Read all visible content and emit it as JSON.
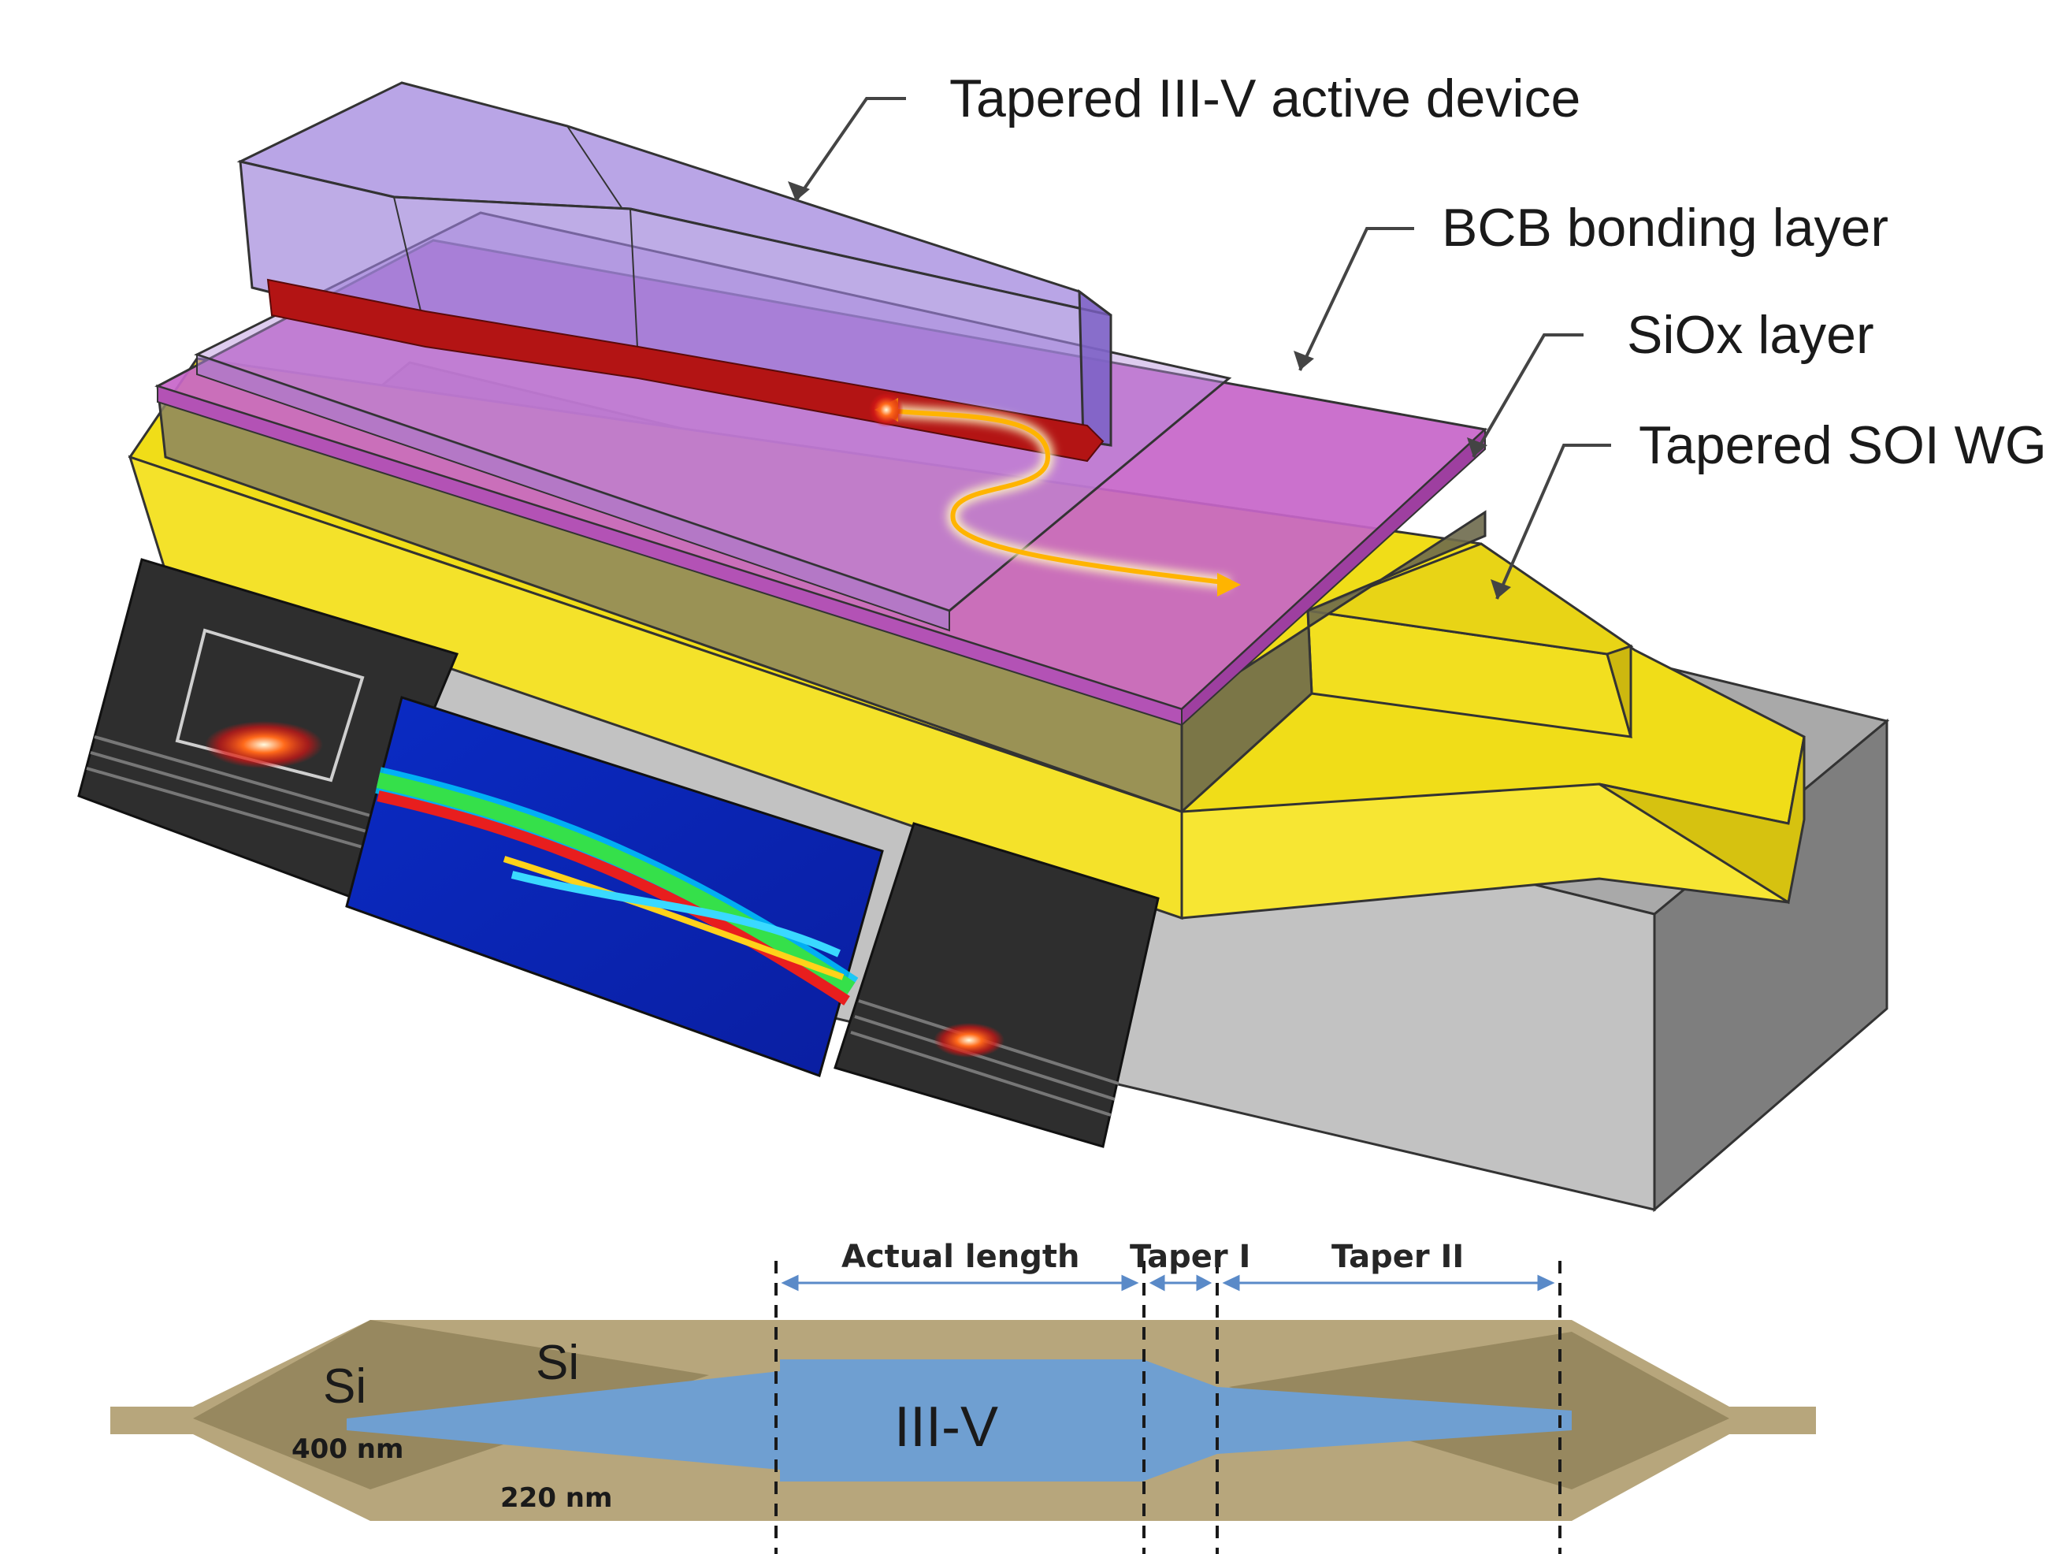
{
  "figure": {
    "top_diagram": {
      "callouts": [
        {
          "id": "iiiv-device",
          "label": "Tapered III-V active device"
        },
        {
          "id": "bcb",
          "label": "BCB bonding layer"
        },
        {
          "id": "siox",
          "label": "SiOx layer"
        },
        {
          "id": "soi-wg",
          "label": "Tapered SOI WG"
        }
      ]
    },
    "bottom_diagram": {
      "sections": {
        "actual_length": "Actual length",
        "taper1": "Taper I",
        "taper2": "Taper II"
      },
      "labels": {
        "si_left": "Si",
        "si_mid": "Si",
        "iiiv": "III-V",
        "t400": "400 nm",
        "t220": "220 nm"
      }
    },
    "colors": {
      "iiiv_body": "#a78fe0",
      "active_layer": "#b31414",
      "bcb": "#c765c9",
      "siox": "#8b8560",
      "soi_yellow": "#f0dd18",
      "substrate": "#9a9a9a",
      "taper_tan": "#b7a67c",
      "taper_dark": "#8c7d56",
      "iiiv_blue": "#6f9fd1",
      "light_path": "#ffb400"
    }
  }
}
